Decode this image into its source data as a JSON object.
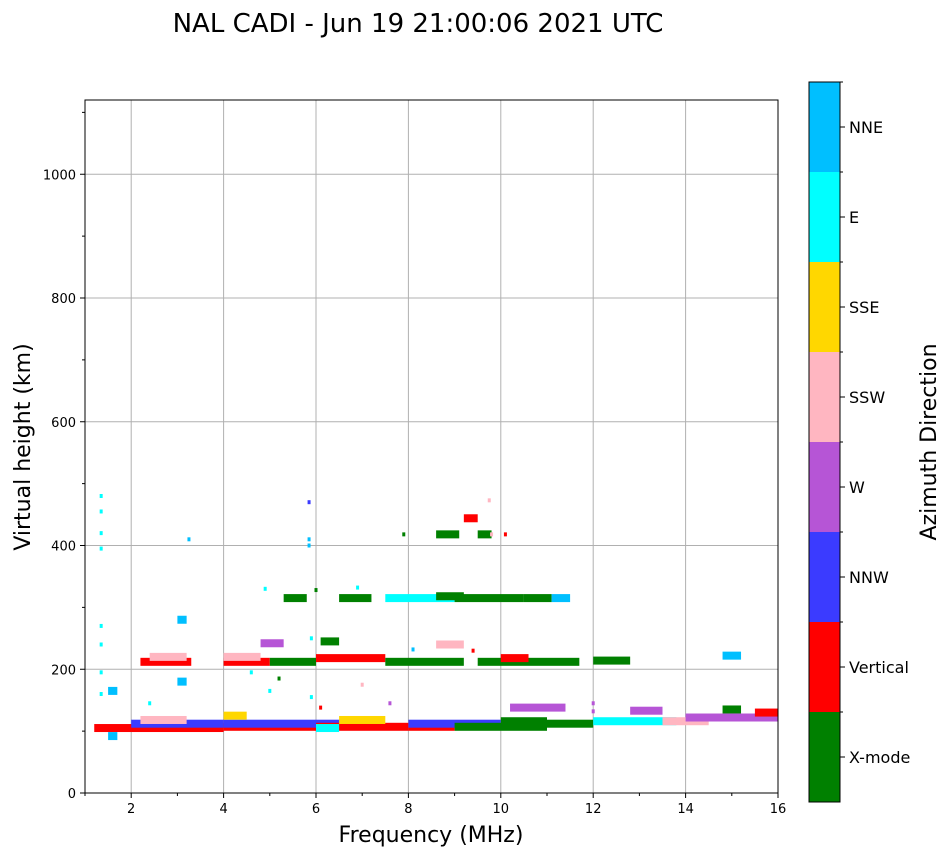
{
  "chart_data": {
    "type": "scatter",
    "title": "NAL CADI - Jun 19 21:00:06 2021 UTC",
    "xlabel": "Frequency (MHz)",
    "ylabel": "Virtual height (km)",
    "xlim": [
      1,
      16
    ],
    "ylim": [
      0,
      1120
    ],
    "xticks": [
      2,
      4,
      6,
      8,
      10,
      12,
      14,
      16
    ],
    "yticks": [
      0,
      200,
      400,
      600,
      800,
      1000
    ],
    "grid": true,
    "colorbar": {
      "label": "Azimuth Direction",
      "categories": [
        {
          "name": "X-mode",
          "color": "#008000"
        },
        {
          "name": "Vertical",
          "color": "#ff0000"
        },
        {
          "name": "NNW",
          "color": "#3b3bff"
        },
        {
          "name": "W",
          "color": "#b655d6"
        },
        {
          "name": "SSW",
          "color": "#ffb6c1"
        },
        {
          "name": "SSE",
          "color": "#ffd700"
        },
        {
          "name": "E",
          "color": "#00ffff"
        },
        {
          "name": "NNE",
          "color": "#00bfff"
        }
      ]
    },
    "segments": [
      {
        "f0": 1.2,
        "f1": 4.0,
        "h": 105,
        "dir": "Vertical"
      },
      {
        "f0": 2.0,
        "f1": 4.0,
        "h": 112,
        "dir": "NNW"
      },
      {
        "f0": 2.2,
        "f1": 3.2,
        "h": 118,
        "dir": "SSW"
      },
      {
        "f0": 4.0,
        "f1": 6.0,
        "h": 107,
        "dir": "Vertical"
      },
      {
        "f0": 4.0,
        "f1": 7.0,
        "h": 112,
        "dir": "NNW"
      },
      {
        "f0": 4.0,
        "f1": 4.5,
        "h": 125,
        "dir": "SSE"
      },
      {
        "f0": 6.0,
        "f1": 8.0,
        "h": 107,
        "dir": "Vertical"
      },
      {
        "f0": 6.0,
        "f1": 6.5,
        "h": 105,
        "dir": "E"
      },
      {
        "f0": 6.5,
        "f1": 7.5,
        "h": 118,
        "dir": "SSE"
      },
      {
        "f0": 8.0,
        "f1": 9.0,
        "h": 107,
        "dir": "Vertical"
      },
      {
        "f0": 8.0,
        "f1": 10.0,
        "h": 112,
        "dir": "NNW"
      },
      {
        "f0": 9.0,
        "f1": 11.0,
        "h": 107,
        "dir": "X-mode"
      },
      {
        "f0": 10.0,
        "f1": 11.0,
        "h": 116,
        "dir": "X-mode"
      },
      {
        "f0": 10.2,
        "f1": 11.4,
        "h": 138,
        "dir": "W"
      },
      {
        "f0": 11.0,
        "f1": 12.0,
        "h": 112,
        "dir": "X-mode"
      },
      {
        "f0": 12.0,
        "f1": 13.8,
        "h": 116,
        "dir": "E"
      },
      {
        "f0": 12.8,
        "f1": 13.5,
        "h": 133,
        "dir": "W"
      },
      {
        "f0": 13.5,
        "f1": 14.5,
        "h": 116,
        "dir": "SSW"
      },
      {
        "f0": 14.0,
        "f1": 16.0,
        "h": 122,
        "dir": "W"
      },
      {
        "f0": 14.8,
        "f1": 15.2,
        "h": 135,
        "dir": "X-mode"
      },
      {
        "f0": 15.5,
        "f1": 16.0,
        "h": 130,
        "dir": "Vertical"
      },
      {
        "f0": 2.2,
        "f1": 3.3,
        "h": 212,
        "dir": "Vertical"
      },
      {
        "f0": 2.4,
        "f1": 3.2,
        "h": 220,
        "dir": "SSW"
      },
      {
        "f0": 4.0,
        "f1": 5.0,
        "h": 212,
        "dir": "Vertical"
      },
      {
        "f0": 4.0,
        "f1": 4.8,
        "h": 220,
        "dir": "SSW"
      },
      {
        "f0": 5.0,
        "f1": 6.0,
        "h": 212,
        "dir": "X-mode"
      },
      {
        "f0": 4.8,
        "f1": 5.3,
        "h": 242,
        "dir": "W"
      },
      {
        "f0": 6.0,
        "f1": 7.5,
        "h": 218,
        "dir": "Vertical"
      },
      {
        "f0": 6.1,
        "f1": 6.5,
        "h": 245,
        "dir": "X-mode"
      },
      {
        "f0": 7.5,
        "f1": 9.2,
        "h": 212,
        "dir": "X-mode"
      },
      {
        "f0": 8.6,
        "f1": 9.2,
        "h": 240,
        "dir": "SSW"
      },
      {
        "f0": 9.5,
        "f1": 11.7,
        "h": 212,
        "dir": "X-mode"
      },
      {
        "f0": 10.0,
        "f1": 10.6,
        "h": 218,
        "dir": "Vertical"
      },
      {
        "f0": 12.0,
        "f1": 12.8,
        "h": 214,
        "dir": "X-mode"
      },
      {
        "f0": 14.8,
        "f1": 15.2,
        "h": 222,
        "dir": "NNE"
      },
      {
        "f0": 5.3,
        "f1": 5.8,
        "h": 315,
        "dir": "X-mode"
      },
      {
        "f0": 6.5,
        "f1": 7.2,
        "h": 315,
        "dir": "X-mode"
      },
      {
        "f0": 7.5,
        "f1": 9.0,
        "h": 315,
        "dir": "E"
      },
      {
        "f0": 8.6,
        "f1": 9.2,
        "h": 318,
        "dir": "X-mode"
      },
      {
        "f0": 9.0,
        "f1": 10.5,
        "h": 315,
        "dir": "X-mode"
      },
      {
        "f0": 10.5,
        "f1": 11.1,
        "h": 315,
        "dir": "X-mode"
      },
      {
        "f0": 11.1,
        "f1": 11.5,
        "h": 315,
        "dir": "NNE"
      },
      {
        "f0": 8.6,
        "f1": 9.1,
        "h": 418,
        "dir": "X-mode"
      },
      {
        "f0": 9.5,
        "f1": 9.8,
        "h": 418,
        "dir": "X-mode"
      },
      {
        "f0": 9.2,
        "f1": 9.5,
        "h": 444,
        "dir": "Vertical"
      },
      {
        "f0": 1.5,
        "f1": 1.7,
        "h": 165,
        "dir": "NNE"
      },
      {
        "f0": 1.5,
        "f1": 1.7,
        "h": 92,
        "dir": "NNE"
      },
      {
        "f0": 3.0,
        "f1": 3.2,
        "h": 280,
        "dir": "NNE"
      },
      {
        "f0": 3.0,
        "f1": 3.2,
        "h": 180,
        "dir": "NNE"
      }
    ],
    "points": [
      {
        "f": 1.35,
        "h": 480,
        "dir": "E"
      },
      {
        "f": 1.35,
        "h": 455,
        "dir": "E"
      },
      {
        "f": 1.35,
        "h": 420,
        "dir": "E"
      },
      {
        "f": 1.35,
        "h": 395,
        "dir": "E"
      },
      {
        "f": 1.35,
        "h": 270,
        "dir": "E"
      },
      {
        "f": 1.35,
        "h": 240,
        "dir": "E"
      },
      {
        "f": 1.35,
        "h": 195,
        "dir": "E"
      },
      {
        "f": 1.35,
        "h": 160,
        "dir": "E"
      },
      {
        "f": 3.25,
        "h": 410,
        "dir": "NNE"
      },
      {
        "f": 5.85,
        "h": 470,
        "dir": "NNW"
      },
      {
        "f": 5.85,
        "h": 410,
        "dir": "NNE"
      },
      {
        "f": 5.85,
        "h": 400,
        "dir": "NNE"
      },
      {
        "f": 9.75,
        "h": 473,
        "dir": "SSW"
      },
      {
        "f": 9.8,
        "h": 418,
        "dir": "SSW"
      },
      {
        "f": 10.1,
        "h": 418,
        "dir": "Vertical"
      },
      {
        "f": 7.9,
        "h": 418,
        "dir": "X-mode"
      },
      {
        "f": 4.9,
        "h": 330,
        "dir": "E"
      },
      {
        "f": 6.0,
        "h": 328,
        "dir": "X-mode"
      },
      {
        "f": 6.9,
        "h": 332,
        "dir": "E"
      },
      {
        "f": 4.6,
        "h": 195,
        "dir": "E"
      },
      {
        "f": 5.0,
        "h": 165,
        "dir": "E"
      },
      {
        "f": 5.2,
        "h": 185,
        "dir": "X-mode"
      },
      {
        "f": 5.9,
        "h": 155,
        "dir": "E"
      },
      {
        "f": 6.1,
        "h": 138,
        "dir": "Vertical"
      },
      {
        "f": 7.0,
        "h": 175,
        "dir": "SSW"
      },
      {
        "f": 7.6,
        "h": 145,
        "dir": "W"
      },
      {
        "f": 2.4,
        "h": 145,
        "dir": "E"
      },
      {
        "f": 5.9,
        "h": 250,
        "dir": "E"
      },
      {
        "f": 12.0,
        "h": 145,
        "dir": "W"
      },
      {
        "f": 12.0,
        "h": 132,
        "dir": "W"
      },
      {
        "f": 9.4,
        "h": 230,
        "dir": "Vertical"
      },
      {
        "f": 8.1,
        "h": 232,
        "dir": "NNE"
      }
    ]
  }
}
